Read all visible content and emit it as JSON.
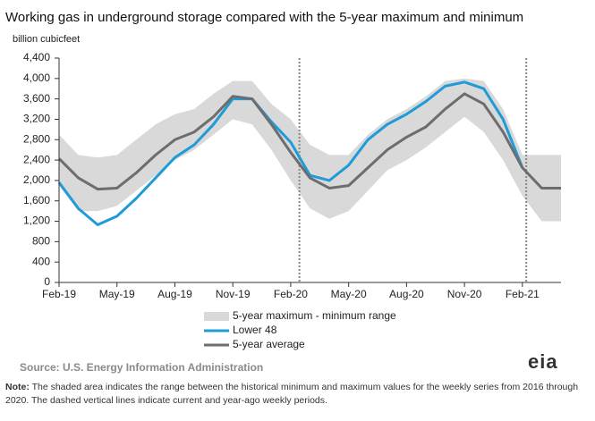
{
  "chart_data": {
    "type": "line",
    "title": "Working gas in underground  storage compared with the 5-year maximum  and minimum",
    "y_label": "billion cubicfeet",
    "categories": [
      "Feb-19",
      null,
      null,
      "May-19",
      null,
      null,
      "Aug-19",
      null,
      null,
      "Nov-19",
      null,
      null,
      "Feb-20",
      null,
      null,
      "May-20",
      null,
      null,
      "Aug-20",
      null,
      null,
      "Nov-20",
      null,
      null,
      "Feb-21",
      null,
      null
    ],
    "range": {
      "name": "5-year maximum - minimum range",
      "color": "#d9d9d9",
      "max": [
        2900,
        2500,
        2450,
        2500,
        2800,
        3100,
        3300,
        3400,
        3700,
        3950,
        3950,
        3500,
        3200,
        2700,
        2500,
        2500,
        2900,
        3200,
        3400,
        3650,
        3950,
        4000,
        3950,
        3400,
        2500,
        2500,
        2500
      ],
      "min": [
        1900,
        1400,
        1400,
        1500,
        1800,
        2100,
        2400,
        2600,
        2900,
        3200,
        3100,
        2600,
        2000,
        1450,
        1250,
        1400,
        1800,
        2200,
        2400,
        2650,
        2950,
        3250,
        2950,
        2400,
        1700,
        1200,
        1200
      ]
    },
    "series": [
      {
        "name": "Lower 48",
        "color": "#1f9bd8",
        "values": [
          1960,
          1450,
          1130,
          1300,
          1650,
          2050,
          2450,
          2700,
          3100,
          3600,
          3600,
          3150,
          2750,
          2100,
          2000,
          2300,
          2800,
          3100,
          3300,
          3550,
          3850,
          3930,
          3800,
          3200,
          2250,
          null,
          null
        ]
      },
      {
        "name": "5-year average",
        "color": "#6d6d6d",
        "values": [
          2430,
          2050,
          1830,
          1850,
          2150,
          2500,
          2800,
          2950,
          3250,
          3650,
          3600,
          3100,
          2550,
          2050,
          1850,
          1900,
          2250,
          2600,
          2850,
          3050,
          3400,
          3700,
          3500,
          2950,
          2250,
          1850,
          1850
        ]
      }
    ],
    "ylim": [
      0,
      4400
    ],
    "yticks": [
      0,
      400,
      800,
      {
        "value": 1200,
        "label": "1,200"
      },
      {
        "value": 1600,
        "label": "1,600"
      },
      {
        "value": 2000,
        "label": "2,000"
      },
      {
        "value": 2400,
        "label": "2,400"
      },
      {
        "value": 2800,
        "label": "2,800"
      },
      {
        "value": 3200,
        "label": "3,200"
      },
      {
        "value": 3600,
        "label": "3,600"
      },
      {
        "value": 4000,
        "label": "4,000"
      },
      {
        "value": 4400,
        "label": "4,400"
      }
    ],
    "grid": false,
    "source": "Source:  U.S. Energy Information Administration",
    "note_label": "Note:",
    "note": "The shaded area indicates the range between the historical minimum and maximum values for the weekly series from 2016 through 2020. The dashed vertical lines indicate current and year-ago weekly periods.",
    "logo": "eia"
  }
}
